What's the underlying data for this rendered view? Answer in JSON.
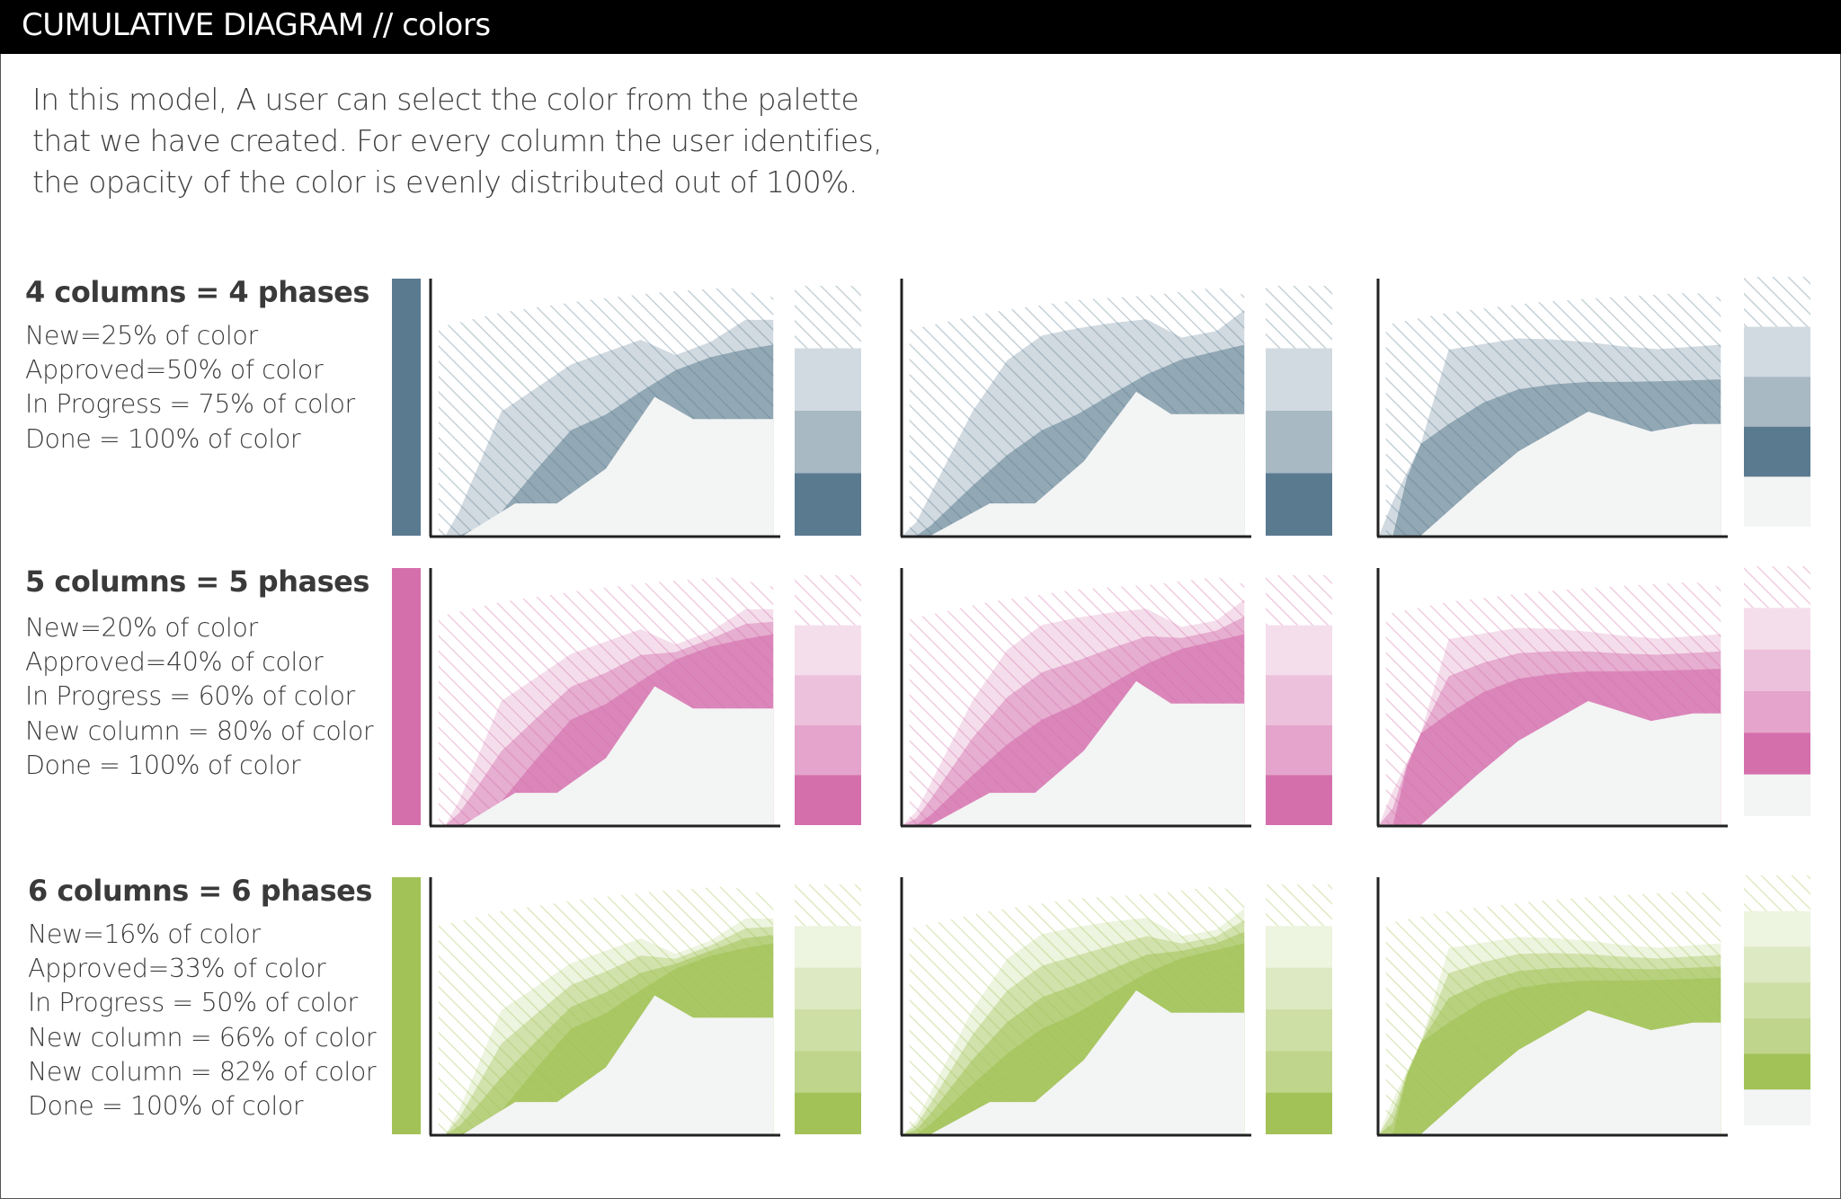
{
  "header": {
    "title": "CUMULATIVE DIAGRAM // colors"
  },
  "intro": {
    "lines": [
      "In this model, A user can select the color from the palette",
      "that we have created. For every column the user identifies,",
      "the opacity of the color is evenly distributed out of 100%."
    ]
  },
  "groups": [
    {
      "title": "4 columns = 4 phases",
      "color": "#5a7a90",
      "legend": [
        "New=25% of color",
        "Approved=50% of color",
        "In Progress = 75% of color",
        "Done = 100% of color"
      ],
      "opacities": [
        0.25,
        0.5,
        0.75,
        1.0
      ]
    },
    {
      "title": "5 columns = 5 phases",
      "color": "#d46fac",
      "legend": [
        "New=20% of color",
        "Approved=40% of color",
        "In Progress = 60% of color",
        "New column = 80% of color",
        "Done = 100% of color"
      ],
      "opacities": [
        0.2,
        0.4,
        0.6,
        0.8,
        1.0
      ]
    },
    {
      "title": "6 columns = 6 phases",
      "color": "#a2c257",
      "legend": [
        "New=16% of color",
        "Approved=33% of color",
        "In Progress = 50% of color",
        "New column = 66% of color",
        "New column = 82% of color",
        "Done = 100% of color"
      ],
      "opacities": [
        0.16,
        0.33,
        0.5,
        0.66,
        0.82,
        1.0
      ]
    }
  ],
  "palette": {
    "done_area": "#f3f4f4",
    "axis": "#222222"
  }
}
